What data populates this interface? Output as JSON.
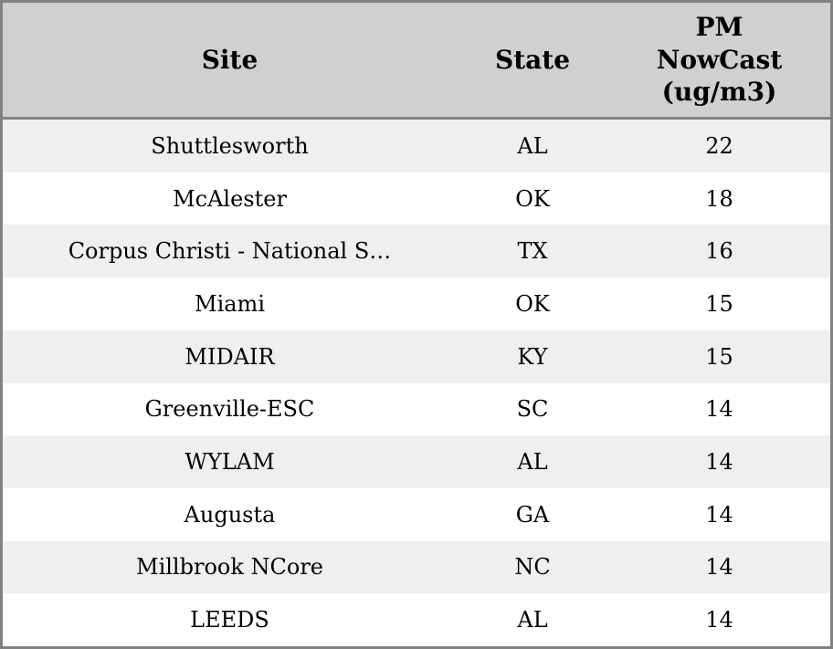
{
  "table": {
    "columns": [
      {
        "key": "site",
        "label": "Site"
      },
      {
        "key": "state",
        "label": "State"
      },
      {
        "key": "pm",
        "label": "PM NowCast (ug/m3)"
      }
    ],
    "rows": [
      {
        "site": "Shuttlesworth",
        "state": "AL",
        "pm": "22"
      },
      {
        "site": "McAlester",
        "state": "OK",
        "pm": "18"
      },
      {
        "site": "Corpus Christi - National S…",
        "state": "TX",
        "pm": "16"
      },
      {
        "site": "Miami",
        "state": "OK",
        "pm": "15"
      },
      {
        "site": "MIDAIR",
        "state": "KY",
        "pm": "15"
      },
      {
        "site": "Greenville-ESC",
        "state": "SC",
        "pm": "14"
      },
      {
        "site": "WYLAM",
        "state": "AL",
        "pm": "14"
      },
      {
        "site": "Augusta",
        "state": "GA",
        "pm": "14"
      },
      {
        "site": "Millbrook NCore",
        "state": "NC",
        "pm": "14"
      },
      {
        "site": "LEEDS",
        "state": "AL",
        "pm": "14"
      }
    ]
  },
  "colors": {
    "border": "#828282",
    "header_bg": "#d0d0d0",
    "row_alt_bg": "#efefef",
    "row_bg": "#ffffff",
    "text": "#000000"
  },
  "chart_data": {
    "type": "table",
    "title": "",
    "columns": [
      "Site",
      "State",
      "PM NowCast (ug/m3)"
    ],
    "rows": [
      [
        "Shuttlesworth",
        "AL",
        22
      ],
      [
        "McAlester",
        "OK",
        18
      ],
      [
        "Corpus Christi - National S…",
        "TX",
        16
      ],
      [
        "Miami",
        "OK",
        15
      ],
      [
        "MIDAIR",
        "KY",
        15
      ],
      [
        "Greenville-ESC",
        "SC",
        14
      ],
      [
        "WYLAM",
        "AL",
        14
      ],
      [
        "Augusta",
        "GA",
        14
      ],
      [
        "Millbrook NCore",
        "NC",
        14
      ],
      [
        "LEEDS",
        "AL",
        14
      ]
    ],
    "layout_hints": {
      "header_background": "#d0d0d0",
      "alternating_row_background": "#efefef",
      "grid": "outer-border-and-header-rule-only",
      "cell_alignment": "center"
    }
  }
}
